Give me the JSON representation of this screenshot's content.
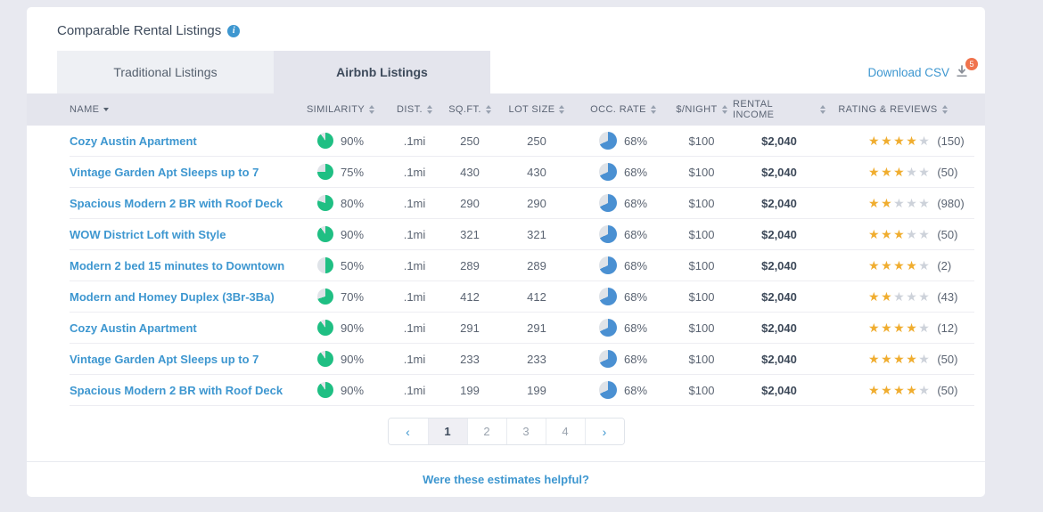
{
  "header": {
    "title": "Comparable Rental Listings"
  },
  "tabs": [
    {
      "label": "Traditional Listings",
      "active": false
    },
    {
      "label": "Airbnb Listings",
      "active": true
    }
  ],
  "download": {
    "label": "Download CSV",
    "badge_count": "5"
  },
  "table": {
    "columns": [
      {
        "key": "name",
        "label": "NAME",
        "sort": "desc"
      },
      {
        "key": "similarity",
        "label": "SIMILARITY",
        "sort": "updown"
      },
      {
        "key": "dist",
        "label": "DIST.",
        "sort": "updown"
      },
      {
        "key": "sqft",
        "label": "SQ.FT.",
        "sort": "updown"
      },
      {
        "key": "lotsize",
        "label": "LOT SIZE",
        "sort": "updown"
      },
      {
        "key": "occrate",
        "label": "OCC. RATE",
        "sort": "updown"
      },
      {
        "key": "night",
        "label": "$/NIGHT",
        "sort": "updown"
      },
      {
        "key": "income",
        "label": "RENTAL INCOME",
        "sort": "updown"
      },
      {
        "key": "rating",
        "label": "RATING & REVIEWS",
        "sort": "updown"
      }
    ],
    "rows": [
      {
        "name": "Cozy Austin Apartment",
        "similarity": "90%",
        "similarity_pct": 90,
        "dist": ".1mi",
        "sqft": "250",
        "lot_size": "250",
        "occ_rate": "68%",
        "occ_pct": 68,
        "price_night": "$100",
        "rental_income": "$2,040",
        "stars": 4,
        "reviews": "(150)"
      },
      {
        "name": "Vintage Garden Apt Sleeps up to 7",
        "similarity": "75%",
        "similarity_pct": 75,
        "dist": ".1mi",
        "sqft": "430",
        "lot_size": "430",
        "occ_rate": "68%",
        "occ_pct": 68,
        "price_night": "$100",
        "rental_income": "$2,040",
        "stars": 3,
        "reviews": "(50)"
      },
      {
        "name": "Spacious Modern 2 BR with Roof Deck",
        "similarity": "80%",
        "similarity_pct": 80,
        "dist": ".1mi",
        "sqft": "290",
        "lot_size": "290",
        "occ_rate": "68%",
        "occ_pct": 68,
        "price_night": "$100",
        "rental_income": "$2,040",
        "stars": 2,
        "reviews": "(980)"
      },
      {
        "name": "WOW District Loft with Style",
        "similarity": "90%",
        "similarity_pct": 90,
        "dist": ".1mi",
        "sqft": "321",
        "lot_size": "321",
        "occ_rate": "68%",
        "occ_pct": 68,
        "price_night": "$100",
        "rental_income": "$2,040",
        "stars": 3,
        "reviews": "(50)"
      },
      {
        "name": "Modern 2 bed 15 minutes to Downtown",
        "similarity": "50%",
        "similarity_pct": 50,
        "dist": ".1mi",
        "sqft": "289",
        "lot_size": "289",
        "occ_rate": "68%",
        "occ_pct": 68,
        "price_night": "$100",
        "rental_income": "$2,040",
        "stars": 4,
        "reviews": "(2)"
      },
      {
        "name": "Modern and Homey Duplex (3Br-3Ba)",
        "similarity": "70%",
        "similarity_pct": 70,
        "dist": ".1mi",
        "sqft": "412",
        "lot_size": "412",
        "occ_rate": "68%",
        "occ_pct": 68,
        "price_night": "$100",
        "rental_income": "$2,040",
        "stars": 2,
        "reviews": "(43)"
      },
      {
        "name": "Cozy Austin Apartment",
        "similarity": "90%",
        "similarity_pct": 90,
        "dist": ".1mi",
        "sqft": "291",
        "lot_size": "291",
        "occ_rate": "68%",
        "occ_pct": 68,
        "price_night": "$100",
        "rental_income": "$2,040",
        "stars": 4,
        "reviews": "(12)"
      },
      {
        "name": "Vintage Garden Apt Sleeps up to 7",
        "similarity": "90%",
        "similarity_pct": 90,
        "dist": ".1mi",
        "sqft": "233",
        "lot_size": "233",
        "occ_rate": "68%",
        "occ_pct": 68,
        "price_night": "$100",
        "rental_income": "$2,040",
        "stars": 4,
        "reviews": "(50)"
      },
      {
        "name": "Spacious Modern 2 BR with Roof Deck",
        "similarity": "90%",
        "similarity_pct": 90,
        "dist": ".1mi",
        "sqft": "199",
        "lot_size": "199",
        "occ_rate": "68%",
        "occ_pct": 68,
        "price_night": "$100",
        "rental_income": "$2,040",
        "stars": 4,
        "reviews": "(50)"
      }
    ]
  },
  "pagination": {
    "prev": "‹",
    "pages": [
      "1",
      "2",
      "3",
      "4"
    ],
    "current": "1",
    "next": "›"
  },
  "footer": {
    "question": "Were these estimates helpful?"
  },
  "colors": {
    "accent_blue": "#3e97d0",
    "similarity_green": "#1fbf83",
    "occupancy_blue": "#4a90d2",
    "pie_track": "#dfe3e8",
    "star_filled": "#f0ad2f",
    "star_empty": "#cdd2da",
    "badge_orange": "#f0734d"
  }
}
